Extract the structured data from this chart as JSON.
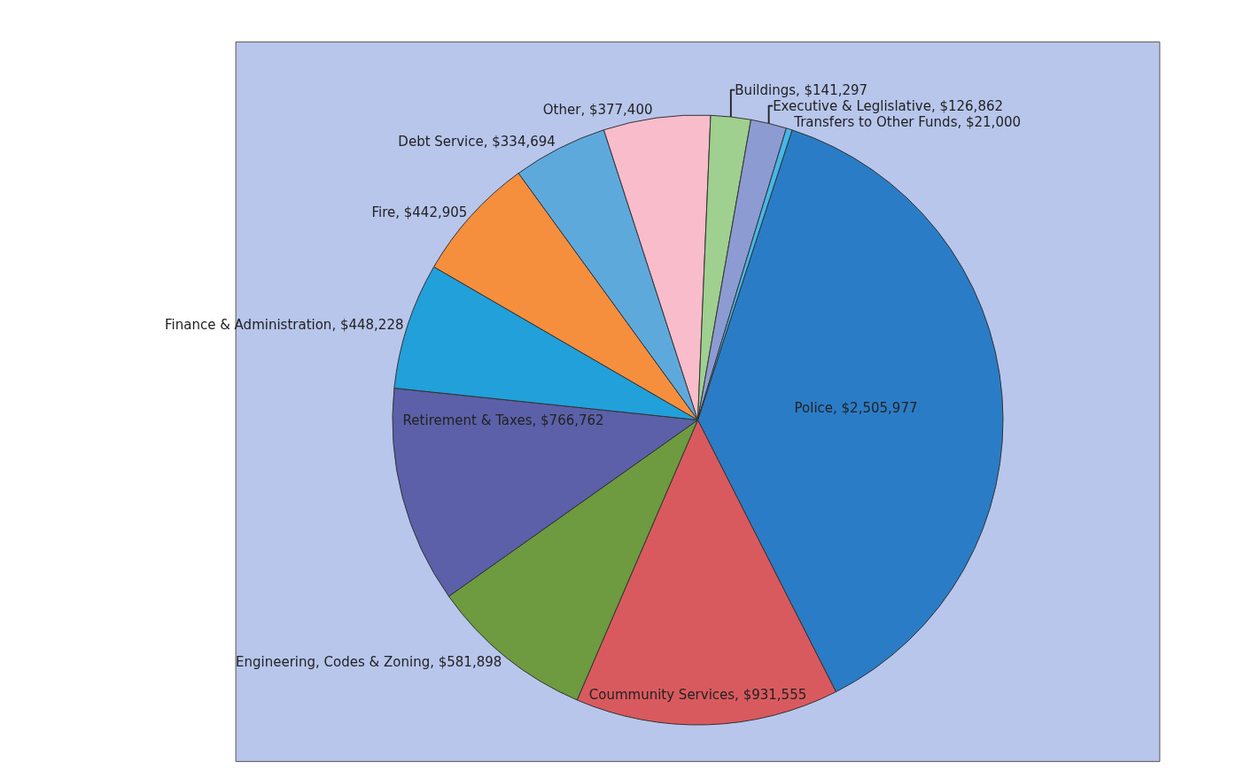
{
  "chart_data": {
    "type": "pie",
    "categories": [
      "Police",
      "Coummunity Services",
      "Engineering, Codes & Zoning",
      "Retirement & Taxes",
      "Finance & Administration",
      "Fire",
      "Debt Service",
      "Other",
      "Buildings",
      "Executive & Leglislative",
      "Transfers to Other Funds"
    ],
    "values": [
      2505977,
      931555,
      581898,
      766762,
      448228,
      442905,
      334694,
      377400,
      141297,
      126862,
      21000
    ],
    "value_labels": [
      "$2,505,977",
      "$931,555",
      "$581,898",
      "$766,762",
      "$448,228",
      "$442,905",
      "$334,694",
      "$377,400",
      "$141,297",
      "$126,862",
      "$21,000"
    ],
    "colors": [
      "#2b7cc6",
      "#d95a5e",
      "#6e9a40",
      "#5b60a8",
      "#22a0da",
      "#f58f3e",
      "#5ea9dc",
      "#f8bccb",
      "#9fd08f",
      "#8c9bd2",
      "#45b8ea"
    ],
    "legend": false
  }
}
